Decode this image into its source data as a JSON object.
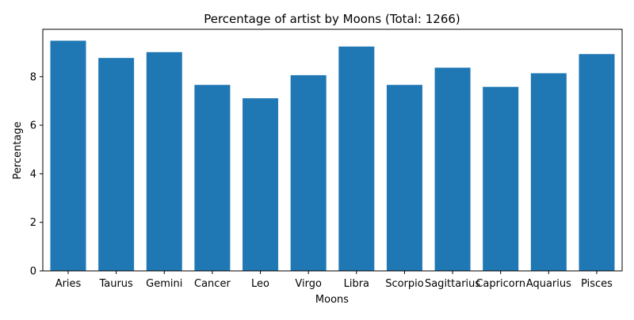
{
  "chart_data": {
    "type": "bar",
    "title": "Percentage of artist by Moons (Total: 1266)",
    "xlabel": "Moons",
    "ylabel": "Percentage",
    "categories": [
      "Aries",
      "Taurus",
      "Gemini",
      "Cancer",
      "Leo",
      "Virgo",
      "Libra",
      "Scorpio",
      "Sagittarius",
      "Capricorn",
      "Aquarius",
      "Pisces"
    ],
    "values": [
      9.48,
      8.77,
      9.01,
      7.66,
      7.11,
      8.06,
      9.24,
      7.66,
      8.37,
      7.58,
      8.14,
      8.93
    ],
    "ylim": [
      0,
      9.95
    ],
    "yticks": [
      0,
      2,
      4,
      6,
      8
    ],
    "bar_color": "#1f77b4",
    "grid": false,
    "legend": "none"
  }
}
